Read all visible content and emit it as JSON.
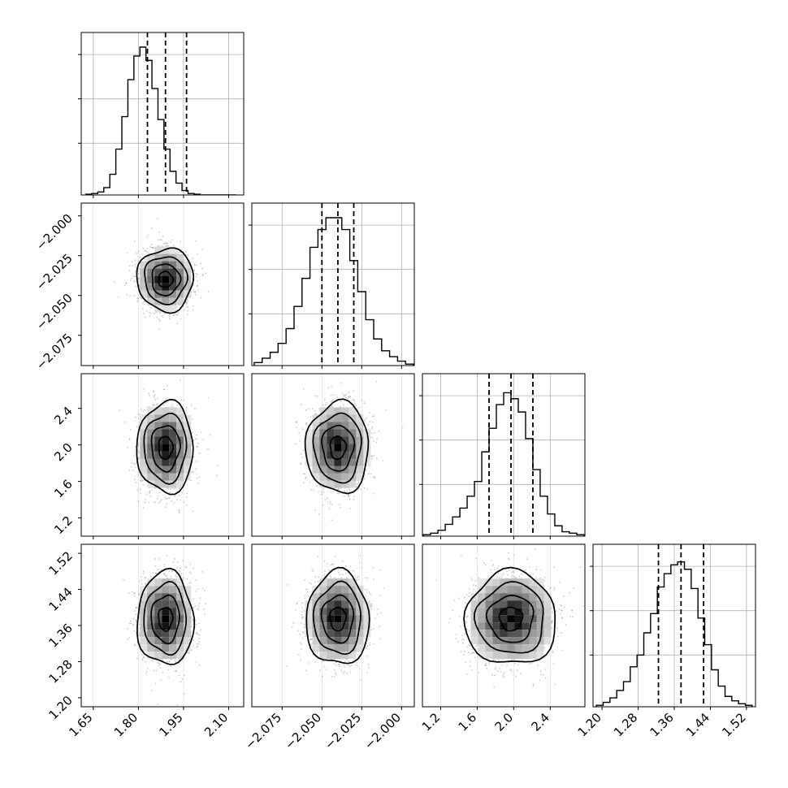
{
  "figure": {
    "type": "corner-plot",
    "background": "#ffffff",
    "hist_color": "#000000",
    "quantile_line_style": "dashed",
    "grid": true,
    "grid_color": "#b0b0b0",
    "tick_label_rotation_deg": 45
  },
  "parameters": [
    {
      "range": [
        1.61,
        2.15
      ],
      "ticks": [
        1.65,
        1.8,
        1.95,
        2.1
      ],
      "tick_labels": [
        "1.65",
        "1.80",
        "1.95",
        "2.10"
      ],
      "center": 1.89,
      "spread": 0.045,
      "quantiles": [
        1.83,
        1.89,
        1.96
      ]
    },
    {
      "range": [
        -2.094,
        -1.992
      ],
      "ticks": [
        -2.075,
        -2.05,
        -2.025,
        -2.0
      ],
      "tick_labels": [
        "−2.075",
        "−2.050",
        "−2.025",
        "−2.000"
      ],
      "center": -2.04,
      "spread": 0.0095,
      "quantiles": [
        -2.05,
        -2.04,
        -2.03
      ]
    },
    {
      "range": [
        1.0,
        2.78
      ],
      "ticks": [
        1.2,
        1.6,
        2.0,
        2.4
      ],
      "tick_labels": [
        "1.2",
        "1.6",
        "2.0",
        "2.4"
      ],
      "center": 1.97,
      "spread": 0.24,
      "quantiles": [
        1.73,
        1.97,
        2.21
      ]
    },
    {
      "range": [
        1.18,
        1.54
      ],
      "ticks": [
        1.2,
        1.28,
        1.36,
        1.44,
        1.52
      ],
      "tick_labels": [
        "1.20",
        "1.28",
        "1.36",
        "1.44",
        "1.52"
      ],
      "center": 1.375,
      "spread": 0.05,
      "quantiles": [
        1.325,
        1.375,
        1.425
      ]
    }
  ],
  "chart_data": {
    "type": "corner",
    "n_parameters": 4,
    "histograms": [
      {
        "param": 0,
        "bins": [
          1.635,
          1.655,
          1.675,
          1.695,
          1.715,
          1.735,
          1.755,
          1.775,
          1.795,
          1.815,
          1.835,
          1.855,
          1.875,
          1.895,
          1.915,
          1.935,
          1.955,
          1.975,
          1.995,
          2.015,
          2.035,
          2.055,
          2.075,
          2.095,
          2.115
        ],
        "counts": [
          0.005,
          0.01,
          0.02,
          0.05,
          0.14,
          0.31,
          0.53,
          0.78,
          0.94,
          1.0,
          0.91,
          0.72,
          0.51,
          0.31,
          0.16,
          0.08,
          0.03,
          0.01,
          0.005,
          0,
          0,
          0,
          0,
          0,
          0
        ]
      },
      {
        "param": 1,
        "bins": [
          -2.09,
          -2.085,
          -2.08,
          -2.075,
          -2.07,
          -2.065,
          -2.06,
          -2.055,
          -2.05,
          -2.045,
          -2.04,
          -2.035,
          -2.03,
          -2.025,
          -2.02,
          -2.015,
          -2.01,
          -2.005,
          -2.0,
          -1.995
        ],
        "counts": [
          0.02,
          0.05,
          0.09,
          0.15,
          0.25,
          0.4,
          0.59,
          0.8,
          0.92,
          1.0,
          1.0,
          0.92,
          0.71,
          0.5,
          0.31,
          0.18,
          0.1,
          0.06,
          0.03,
          0.01
        ]
      },
      {
        "param": 2,
        "bins": [
          1.05,
          1.13,
          1.21,
          1.29,
          1.37,
          1.45,
          1.53,
          1.61,
          1.69,
          1.77,
          1.85,
          1.93,
          2.01,
          2.09,
          2.17,
          2.25,
          2.33,
          2.41,
          2.49,
          2.57,
          2.65,
          2.73
        ],
        "counts": [
          0.01,
          0.02,
          0.04,
          0.08,
          0.13,
          0.19,
          0.27,
          0.37,
          0.57,
          0.73,
          0.89,
          0.97,
          0.93,
          0.84,
          0.66,
          0.45,
          0.27,
          0.15,
          0.07,
          0.03,
          0.02,
          0.01
        ]
      },
      {
        "param": 3,
        "bins": [
          1.195,
          1.21,
          1.225,
          1.24,
          1.255,
          1.27,
          1.285,
          1.3,
          1.315,
          1.33,
          1.345,
          1.36,
          1.375,
          1.39,
          1.405,
          1.42,
          1.435,
          1.45,
          1.465,
          1.48,
          1.495,
          1.51,
          1.525
        ],
        "counts": [
          0.01,
          0.03,
          0.06,
          0.11,
          0.17,
          0.27,
          0.35,
          0.5,
          0.63,
          0.81,
          0.9,
          0.96,
          0.98,
          0.93,
          0.8,
          0.6,
          0.42,
          0.25,
          0.14,
          0.07,
          0.04,
          0.02,
          0.01
        ]
      }
    ],
    "contour_levels_sigma": [
      0.5,
      1.0,
      1.5,
      2.0
    ],
    "samples_note_hidden": ""
  }
}
